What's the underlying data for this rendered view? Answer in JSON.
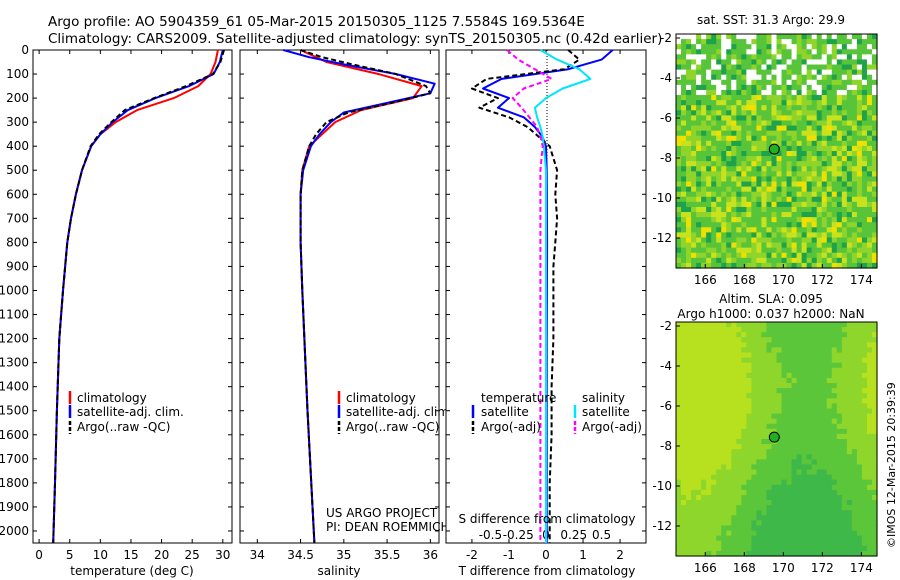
{
  "header": {
    "line1": "Argo profile: AO 5904359_61 05-Mar-2015 20150305_1125 7.5584S 169.5364E",
    "line2": "Climatology: CARS2009. Satellite-adjusted climatology: synTS_20150305.nc (0.42d earlier)"
  },
  "colors": {
    "climatology": "#ff0000",
    "satellite": "#0000ff",
    "argo": "#000000",
    "satellite_salinity": "#00e5ff",
    "argo_salinity": "#ff00ff"
  },
  "depth_axis": {
    "ticks": [
      "0",
      "100",
      "200",
      "300",
      "400",
      "500",
      "600",
      "700",
      "800",
      "900",
      "1000",
      "1100",
      "1200",
      "1300",
      "1400",
      "1500",
      "1600",
      "1700",
      "1800",
      "1900",
      "2000"
    ],
    "range": [
      0,
      2050
    ]
  },
  "chart_data": [
    {
      "type": "line",
      "name": "temperature",
      "xlabel": "temperature (deg C)",
      "xlim": [
        -1,
        31.5
      ],
      "xticks": [
        0,
        5,
        10,
        15,
        20,
        25,
        30
      ],
      "xtick_labels": [
        "0",
        "5",
        "10",
        "15",
        "20",
        "25",
        "30"
      ],
      "legend": [
        "climatology",
        "satellite-adj. clim.",
        "Argo(..raw -QC)"
      ],
      "series": [
        {
          "name": "climatology",
          "depth": [
            0,
            50,
            100,
            150,
            200,
            250,
            300,
            350,
            400,
            500,
            600,
            700,
            800,
            1000,
            1200,
            1500,
            1800,
            2050
          ],
          "values": [
            29.2,
            28.8,
            28.0,
            26.0,
            22.0,
            16.0,
            12.5,
            10.0,
            8.5,
            7.0,
            6.0,
            5.2,
            4.6,
            3.9,
            3.3,
            2.9,
            2.6,
            2.3
          ]
        },
        {
          "name": "satellite-adj. clim.",
          "depth": [
            0,
            50,
            100,
            150,
            200,
            250,
            300,
            350,
            400,
            500,
            600,
            700,
            800,
            1000,
            1200,
            1500,
            1800,
            2050
          ],
          "values": [
            30.0,
            29.5,
            28.5,
            24.5,
            19.0,
            14.5,
            12.0,
            10.0,
            8.5,
            7.0,
            6.0,
            5.2,
            4.6,
            3.9,
            3.3,
            2.9,
            2.6,
            2.3
          ]
        },
        {
          "name": "Argo(..raw -QC)",
          "depth": [
            0,
            50,
            100,
            150,
            200,
            250,
            300,
            350,
            400,
            500,
            600,
            700,
            800,
            1000,
            1200,
            1500,
            1800,
            2050
          ],
          "values": [
            30.2,
            29.6,
            28.4,
            24.0,
            18.8,
            14.0,
            11.8,
            9.8,
            8.4,
            7.0,
            6.0,
            5.2,
            4.6,
            3.9,
            3.3,
            2.9,
            2.6,
            2.3
          ]
        }
      ]
    },
    {
      "type": "line",
      "name": "salinity",
      "xlabel": "salinity",
      "xlim": [
        33.8,
        36.1
      ],
      "xticks": [
        34,
        34.5,
        35,
        35.5,
        36
      ],
      "xtick_labels": [
        "34",
        "34.5",
        "35",
        "35.5",
        "36"
      ],
      "legend": [
        "climatology",
        "satellite-adj. clim.",
        "Argo(..raw -QC)"
      ],
      "series": [
        {
          "name": "climatology",
          "depth": [
            0,
            50,
            100,
            150,
            200,
            250,
            300,
            350,
            400,
            500,
            600,
            800,
            1000,
            1500,
            2050
          ],
          "values": [
            34.5,
            34.8,
            35.4,
            35.9,
            35.8,
            35.2,
            34.9,
            34.75,
            34.6,
            34.52,
            34.5,
            34.5,
            34.52,
            34.58,
            34.66
          ]
        },
        {
          "name": "satellite-adj. clim.",
          "depth": [
            0,
            30,
            60,
            100,
            140,
            180,
            220,
            260,
            300,
            350,
            400,
            500,
            600,
            800,
            1000,
            1500,
            2050
          ],
          "values": [
            34.3,
            34.6,
            35.0,
            35.6,
            36.05,
            36.0,
            35.5,
            35.0,
            34.85,
            34.72,
            34.62,
            34.53,
            34.5,
            34.5,
            34.52,
            34.58,
            34.66
          ]
        },
        {
          "name": "Argo(..raw -QC)",
          "depth": [
            0,
            30,
            60,
            100,
            150,
            180,
            220,
            260,
            300,
            350,
            400,
            500,
            600,
            800,
            1000,
            1500,
            2050
          ],
          "values": [
            34.5,
            34.75,
            35.1,
            35.6,
            35.95,
            36.0,
            35.55,
            35.05,
            34.8,
            34.68,
            34.6,
            34.52,
            34.5,
            34.5,
            34.52,
            34.58,
            34.66
          ]
        }
      ]
    },
    {
      "type": "line",
      "name": "differences",
      "xlabel": "T difference from climatology",
      "xlabel_top": "S difference from climatology",
      "xlim": [
        -2.7,
        2.7
      ],
      "xticks": [
        -2,
        -1,
        0,
        1,
        2
      ],
      "xtick_labels": [
        "-2",
        "-1",
        "0",
        "1",
        "2"
      ],
      "s_ticks": [
        -0.5,
        -0.25,
        0,
        0.25,
        0.5
      ],
      "s_tick_labels": [
        "-0.5",
        "-0.25",
        "0",
        "0.25",
        "0.5"
      ],
      "s_scale": 3.0,
      "legend_headers": [
        "temperature",
        "salinity"
      ],
      "legend": [
        "satellite",
        "Argo(-adj)",
        "satellite",
        "Argo(-adj)"
      ],
      "series": [
        {
          "name": "temperature satellite",
          "depth": [
            0,
            40,
            80,
            120,
            160,
            200,
            240,
            280,
            320,
            360,
            400,
            500,
            800,
            1200,
            1600,
            2050
          ],
          "values": [
            1.8,
            1.5,
            0.6,
            -1.2,
            -1.7,
            -1.0,
            -1.3,
            -0.6,
            -0.3,
            -0.1,
            0.0,
            0.02,
            0.03,
            0.02,
            0.02,
            0.02
          ]
        },
        {
          "name": "temperature Argo(-adj)",
          "depth": [
            0,
            40,
            80,
            120,
            160,
            200,
            240,
            280,
            320,
            360,
            400,
            500,
            600,
            700,
            800,
            900,
            1000,
            1200,
            1400,
            1600,
            1800,
            2050
          ],
          "values": [
            0.6,
            0.9,
            0.5,
            -1.6,
            -2.0,
            -1.3,
            -1.8,
            -1.0,
            -0.5,
            -0.2,
            0.1,
            0.3,
            0.25,
            0.3,
            0.25,
            0.2,
            0.2,
            0.2,
            0.15,
            0.15,
            0.1,
            0.1
          ]
        },
        {
          "name": "salinity satellite",
          "depth": [
            0,
            40,
            80,
            120,
            160,
            200,
            240,
            280,
            320,
            360,
            400,
            500,
            800,
            1200,
            1600,
            2050
          ],
          "values": [
            -0.05,
            0.1,
            0.3,
            0.4,
            0.15,
            0.0,
            -0.1,
            -0.08,
            -0.05,
            -0.03,
            -0.02,
            0.0,
            0.0,
            0.0,
            0.0,
            0.0
          ]
        },
        {
          "name": "salinity Argo(-adj)",
          "depth": [
            0,
            40,
            80,
            120,
            160,
            200,
            240,
            280,
            320,
            360,
            400,
            500,
            800,
            1200,
            1600,
            2050
          ],
          "values": [
            -0.35,
            -0.25,
            -0.1,
            0.05,
            -0.2,
            -0.3,
            -0.22,
            -0.15,
            -0.08,
            -0.05,
            -0.03,
            -0.05,
            -0.05,
            -0.05,
            -0.05,
            -0.05
          ]
        }
      ]
    },
    {
      "type": "heatmap",
      "name": "sst-map",
      "title": "sat. SST: 31.3  Argo: 29.9",
      "xlim": [
        164.5,
        174.8
      ],
      "ylim": [
        -13.5,
        -1.8
      ],
      "xticks": [
        166,
        168,
        170,
        172,
        174
      ],
      "xtick_labels": [
        "166",
        "168",
        "170",
        "172",
        "174"
      ],
      "yticks": [
        -2,
        -4,
        -6,
        -8,
        -10,
        -12
      ],
      "ytick_labels": [
        "-2",
        "-4",
        "-6",
        "-8",
        "-10",
        "-12"
      ],
      "argo_position": [
        169.5364,
        -7.5584
      ]
    },
    {
      "type": "heatmap",
      "name": "sla-map",
      "title1": "Altim. SLA: 0.095",
      "title2": "Argo h1000: 0.037  h2000: NaN",
      "xlim": [
        164.5,
        174.8
      ],
      "ylim": [
        -13.5,
        -1.8
      ],
      "xticks": [
        166,
        168,
        170,
        172,
        174
      ],
      "xtick_labels": [
        "166",
        "168",
        "170",
        "172",
        "174"
      ],
      "yticks": [
        -2,
        -4,
        -6,
        -8,
        -10,
        -12
      ],
      "ytick_labels": [
        "-2",
        "-4",
        "-6",
        "-8",
        "-10",
        "-12"
      ],
      "argo_position": [
        169.5364,
        -7.5584
      ]
    }
  ],
  "project": {
    "line1": "US ARGO PROJECT",
    "line2": "PI: DEAN ROEMMICH"
  },
  "credit": "©IMOS 12-Mar-2015 20:39:39"
}
